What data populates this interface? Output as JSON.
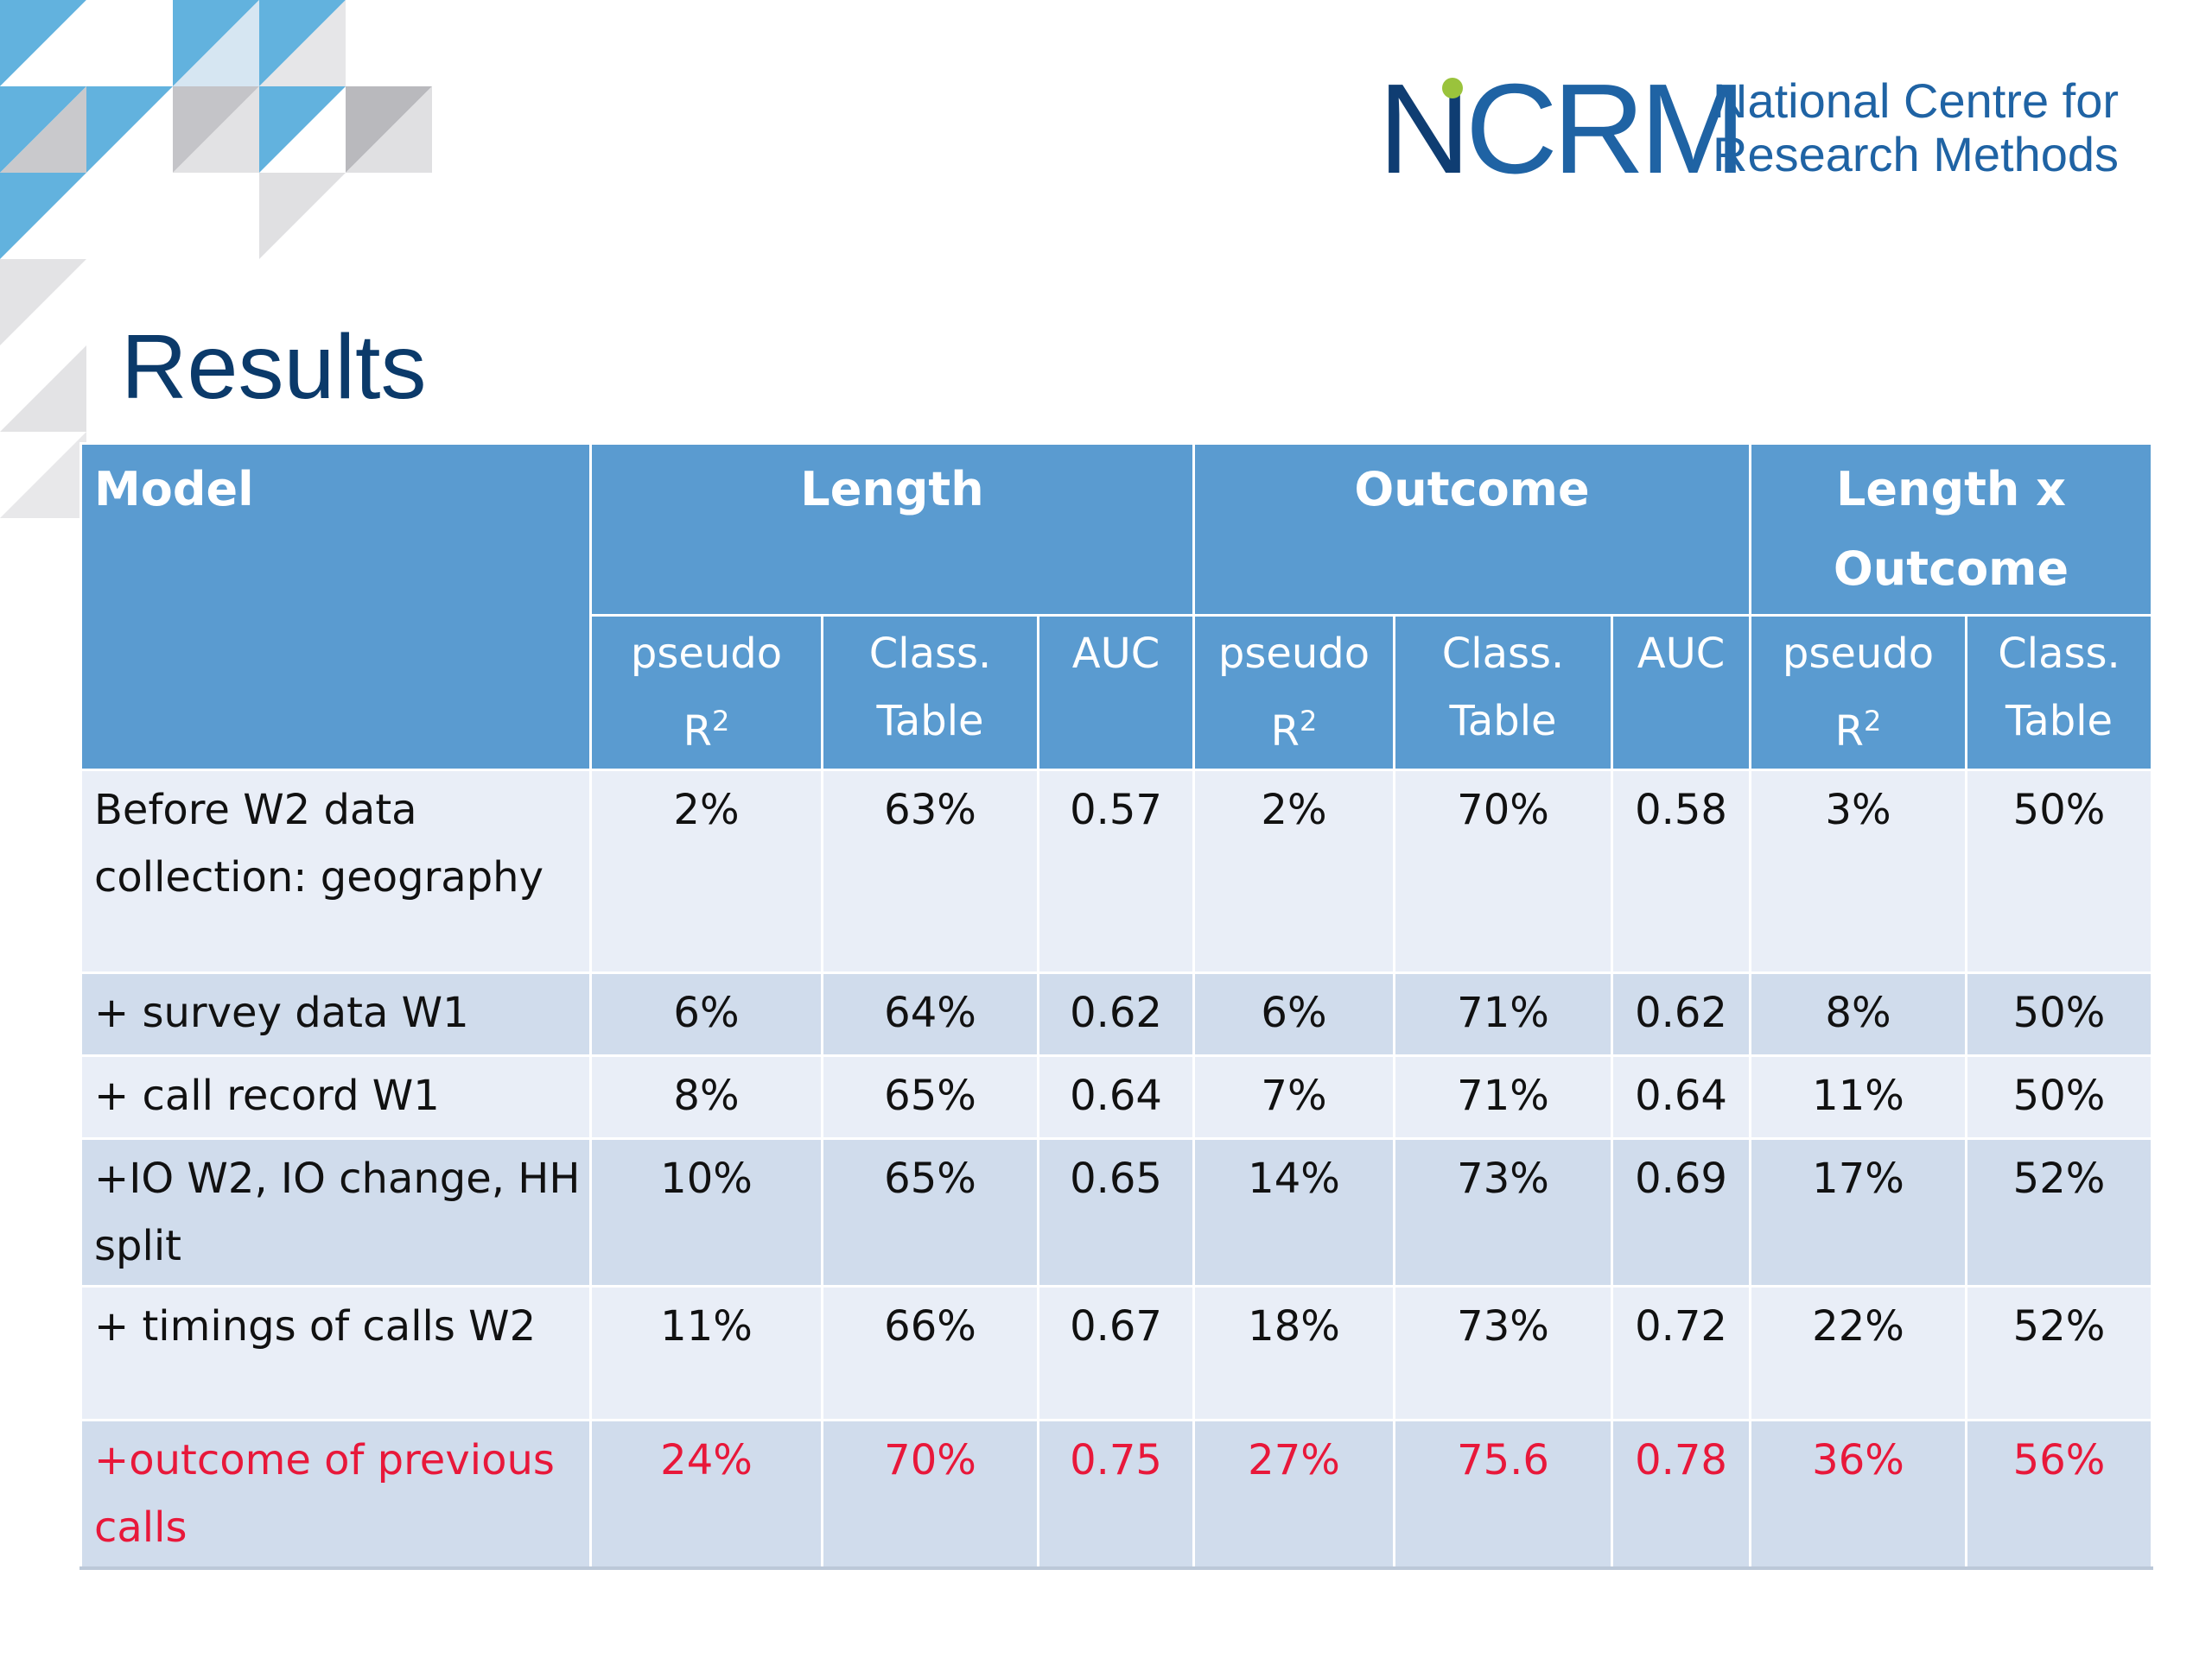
{
  "logo": {
    "mark_first": "N",
    "mark_rest": "CRM",
    "line1": "National Centre for",
    "line2": "Research Methods"
  },
  "title": "Results",
  "table": {
    "model_header": "Model",
    "groups": [
      "Length",
      "Outcome",
      "Length x Outcome"
    ],
    "subheaders": [
      {
        "text": "pseudo",
        "sup": "2"
      },
      {
        "text": "Class. Table",
        "sup": ""
      },
      {
        "text": "AUC",
        "sup": ""
      },
      {
        "text": "pseudo",
        "sup": "2"
      },
      {
        "text": "Class. Table",
        "sup": ""
      },
      {
        "text": "AUC",
        "sup": ""
      },
      {
        "text": "pseudo",
        "sup": "2"
      },
      {
        "text": "Class. Table",
        "sup": ""
      }
    ],
    "pseudo_r": "R",
    "rows": [
      {
        "model": "Before  W2 data collection: geography",
        "values": [
          "2%",
          "63%",
          "0.57",
          "2%",
          "70%",
          "0.58",
          "3%",
          "50%"
        ]
      },
      {
        "model": "+ survey data W1",
        "values": [
          "6%",
          "64%",
          "0.62",
          "6%",
          "71%",
          "0.62",
          "8%",
          "50%"
        ]
      },
      {
        "model": "+ call record  W1",
        "values": [
          "8%",
          "65%",
          "0.64",
          "7%",
          "71%",
          "0.64",
          "11%",
          "50%"
        ]
      },
      {
        "model": "+IO W2, IO change, HH split",
        "values": [
          "10%",
          "65%",
          "0.65",
          "14%",
          "73%",
          "0.69",
          "17%",
          "52%"
        ]
      },
      {
        "model": "+ timings of calls W2",
        "values": [
          "11%",
          "66%",
          "0.67",
          "18%",
          "73%",
          "0.72",
          "22%",
          "52%"
        ]
      },
      {
        "model": "+outcome of previous calls",
        "values": [
          "24%",
          "70%",
          "0.75",
          "27%",
          "75.6",
          "0.78",
          "36%",
          "56%"
        ]
      }
    ]
  },
  "colors": {
    "header_blue": "#5a9bd0",
    "row_light": "#e9eef7",
    "row_dark": "#d0dcec",
    "highlight_red": "#e8183a",
    "title_navy": "#0b3a6a",
    "logo_blue": "#1f63a4"
  }
}
